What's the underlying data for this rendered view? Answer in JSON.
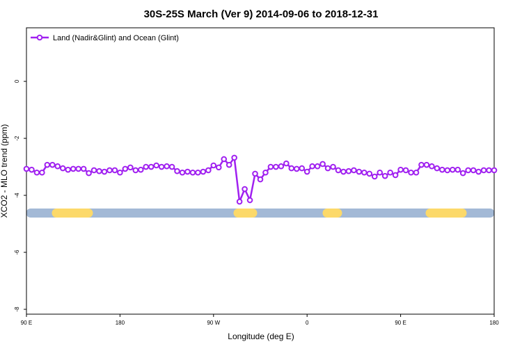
{
  "chart_data": {
    "type": "line",
    "title": "30S-25S March (Ver 9)   2014-09-06 to 2018-12-31",
    "xlabel": "Longitude (deg E)",
    "ylabel": "XCO2 - MLO trend (ppm)",
    "x": [
      90,
      95,
      100,
      105,
      110,
      115,
      120,
      125,
      130,
      135,
      140,
      145,
      150,
      155,
      160,
      165,
      170,
      175,
      180,
      185,
      190,
      195,
      200,
      205,
      210,
      215,
      220,
      225,
      230,
      235,
      240,
      245,
      250,
      255,
      260,
      265,
      270,
      275,
      280,
      285,
      290,
      295,
      300,
      305,
      310,
      315,
      320,
      325,
      330,
      335,
      340,
      345,
      350,
      355,
      360,
      365,
      370,
      375,
      380,
      385,
      390,
      395,
      400,
      405,
      410,
      415,
      420,
      425,
      430,
      435,
      440,
      445,
      450,
      455,
      460,
      465,
      470,
      475,
      480,
      485,
      490,
      495,
      500,
      505,
      510,
      515,
      520,
      525,
      530,
      535,
      540
    ],
    "series": [
      {
        "name": "Land (Nadir&Glint) and Ocean (Glint)",
        "color": "#a020f0",
        "values": [
          -3.07,
          -3.1,
          -3.2,
          -3.2,
          -2.93,
          -2.93,
          -2.98,
          -3.05,
          -3.1,
          -3.07,
          -3.07,
          -3.07,
          -3.22,
          -3.12,
          -3.15,
          -3.17,
          -3.12,
          -3.12,
          -3.2,
          -3.07,
          -3.02,
          -3.12,
          -3.1,
          -3.0,
          -3.0,
          -2.95,
          -3.0,
          -2.98,
          -3.0,
          -3.15,
          -3.2,
          -3.17,
          -3.2,
          -3.2,
          -3.17,
          -3.12,
          -2.95,
          -3.02,
          -2.73,
          -2.93,
          -2.68,
          -4.22,
          -3.78,
          -4.17,
          -3.24,
          -3.44,
          -3.2,
          -3.0,
          -3.0,
          -2.98,
          -2.88,
          -3.05,
          -3.07,
          -3.05,
          -3.17,
          -2.98,
          -2.98,
          -2.9,
          -3.05,
          -3.0,
          -3.12,
          -3.17,
          -3.15,
          -3.12,
          -3.17,
          -3.2,
          -3.24,
          -3.34,
          -3.2,
          -3.32,
          -3.2,
          -3.29,
          -3.1,
          -3.12,
          -3.2,
          -3.2,
          -2.93,
          -2.93,
          -2.98,
          -3.05,
          -3.1,
          -3.12,
          -3.1,
          -3.1,
          -3.22,
          -3.12,
          -3.12,
          -3.17,
          -3.12,
          -3.12,
          -3.12
        ]
      }
    ],
    "xlim": [
      90,
      540
    ],
    "xticks": [
      {
        "value": 90,
        "label": "90 E"
      },
      180,
      {
        "value": 270,
        "label": "90 W"
      },
      {
        "value": 360,
        "label": "0"
      },
      {
        "value": 450,
        "label": "90 E"
      },
      {
        "value": 540,
        "label": "180"
      }
    ],
    "ylim": [
      -8.17,
      1.88
    ],
    "yticks": [
      0,
      -2,
      -4,
      -6,
      -8
    ],
    "legend": "top-left"
  }
}
